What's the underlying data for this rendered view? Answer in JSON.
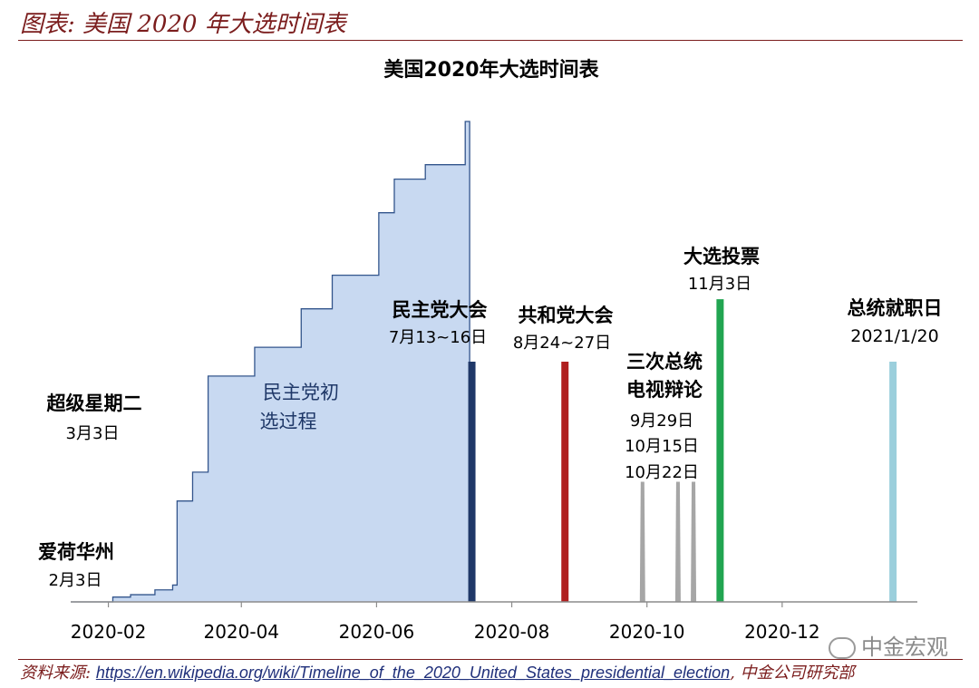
{
  "header": {
    "title": "图表: 美国 2020 年大选时间表"
  },
  "footer": {
    "source_label": "资料来源:",
    "source_url": "https://en.wikipedia.org/wiki/Timeline_of_the_2020_United_States_presidential_election",
    "separator": ",",
    "organization": "中金公司研究部"
  },
  "watermark": {
    "text": "中金宏观"
  },
  "chart_data": {
    "type": "area",
    "title": "美国2020年大选时间表",
    "xlabel": "",
    "ylabel": "",
    "x_ticks": [
      "2020-02",
      "2020-04",
      "2020-06",
      "2020-08",
      "2020-10",
      "2020-12"
    ],
    "x_range": [
      "2020-01-15",
      "2021-01-31"
    ],
    "y_range": [
      0,
      100
    ],
    "grid": false,
    "legend": "none",
    "colors": {
      "primary_area_fill": "#c8d9f1",
      "primary_area_line": "#33558c",
      "dem_convention": "#1f3868",
      "rep_convention": "#b01e1e",
      "debates": "#a6a6a6",
      "election": "#21a551",
      "inauguration": "#9bcfdc"
    },
    "series": [
      {
        "name": "民主党初选过程",
        "label_lines": [
          "民主党初",
          "选过程"
        ],
        "points": [
          [
            "2020-01-15",
            0
          ],
          [
            "2020-02-03",
            1
          ],
          [
            "2020-02-11",
            1.5
          ],
          [
            "2020-02-22",
            2.5
          ],
          [
            "2020-03-01",
            3.5
          ],
          [
            "2020-03-03",
            21
          ],
          [
            "2020-03-10",
            27
          ],
          [
            "2020-03-17",
            47
          ],
          [
            "2020-04-07",
            53
          ],
          [
            "2020-04-28",
            61
          ],
          [
            "2020-05-12",
            68
          ],
          [
            "2020-06-02",
            81
          ],
          [
            "2020-06-09",
            88
          ],
          [
            "2020-06-23",
            91
          ],
          [
            "2020-07-11",
            100
          ],
          [
            "2020-07-13",
            100
          ]
        ]
      }
    ],
    "events": [
      {
        "id": "iowa",
        "date": "2020-02-03",
        "label_lines": [
          "爱荷华州"
        ],
        "date_label": "2月3日"
      },
      {
        "id": "super-tuesday",
        "date": "2020-03-03",
        "label_lines": [
          "超级星期二"
        ],
        "date_label": "3月3日"
      },
      {
        "id": "dem-convention",
        "date": "2020-07-14",
        "height": 50,
        "color_key": "dem_convention",
        "label_lines": [
          "民主党大会"
        ],
        "date_label": "7月13~16日"
      },
      {
        "id": "rep-convention",
        "date": "2020-08-25",
        "height": 50,
        "color_key": "rep_convention",
        "label_lines": [
          "共和党大会"
        ],
        "date_label": "8月24~27日"
      },
      {
        "id": "debate-1",
        "date": "2020-09-29",
        "height": 25,
        "color_key": "debates"
      },
      {
        "id": "debate-2",
        "date": "2020-10-15",
        "height": 25,
        "color_key": "debates"
      },
      {
        "id": "debate-3",
        "date": "2020-10-22",
        "height": 25,
        "color_key": "debates",
        "label_lines": [
          "三次总统",
          "电视辩论"
        ],
        "date_labels": [
          "9月29日",
          "10月15日",
          "10月22日"
        ]
      },
      {
        "id": "election",
        "date": "2020-11-03",
        "height": 63,
        "color_key": "election",
        "label_lines": [
          "大选投票"
        ],
        "date_label": "11月3日"
      },
      {
        "id": "inauguration",
        "date": "2021-01-20",
        "height": 50,
        "color_key": "inauguration",
        "label_lines": [
          "总统就职日"
        ],
        "date_label": "2021/1/20"
      }
    ]
  }
}
